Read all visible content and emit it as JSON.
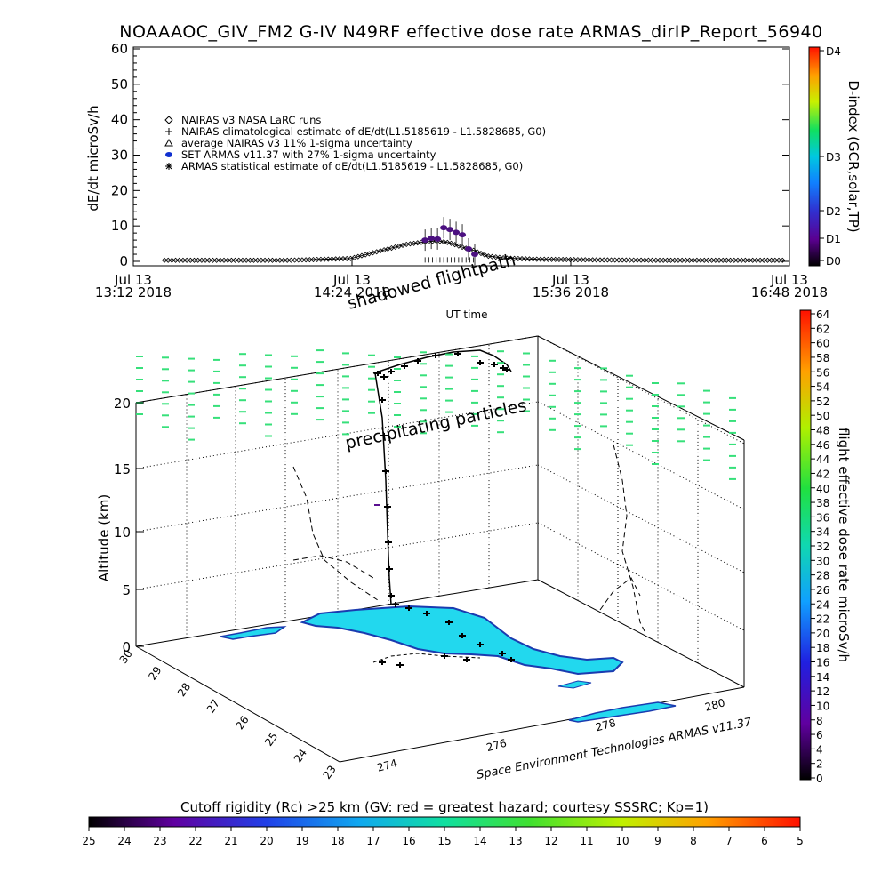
{
  "title": "NOAAAOC_GIV_FM2 G-IV    N49RF   effective dose rate ARMAS_dirIP_Report_56940",
  "chart_data": [
    {
      "type": "scatter",
      "ylabel": "dE/dt microSv/h",
      "xlabel": "UT time",
      "ylim": [
        0,
        60
      ],
      "yticks": [
        "0",
        "10",
        "20",
        "30",
        "40",
        "50",
        "60"
      ],
      "xticks": [
        {
          "date": "Jul 13",
          "time": "13:12 2018"
        },
        {
          "date": "Jul 13",
          "time": "14:24 2018"
        },
        {
          "date": "Jul 13",
          "time": "15:36 2018"
        },
        {
          "date": "Jul 13",
          "time": "16:48 2018"
        }
      ],
      "legend": [
        {
          "symbol": "diamond",
          "label": "NAIRAS v3 NASA LaRC runs"
        },
        {
          "symbol": "plus",
          "label": "NAIRAS climatological estimate of dE/dt(L1.5185619 - L1.5828685, G0)"
        },
        {
          "symbol": "triangle",
          "label": "average NAIRAS v3 11% 1-sigma uncertainty"
        },
        {
          "symbol": "dot",
          "label": "SET ARMAS v11.37 with 27% 1-sigma uncertainty"
        },
        {
          "symbol": "asterisk",
          "label": "ARMAS statistical estimate of dE/dt(L1.5185619 - L1.5828685, G0)"
        }
      ],
      "series": [
        {
          "name": "NAIRAS v3 NASA LaRC runs",
          "x_fraction": [
            0.0,
            0.2,
            0.3,
            0.36,
            0.39,
            0.42,
            0.44,
            0.46,
            0.48,
            0.5,
            0.52,
            0.55,
            0.6,
            0.7,
            0.8,
            0.9,
            1.0
          ],
          "values": [
            0.3,
            0.3,
            0.8,
            3.5,
            4.8,
            5.5,
            5.8,
            5.2,
            4.0,
            3.0,
            1.5,
            0.9,
            0.6,
            0.4,
            0.3,
            0.3,
            0.3
          ]
        },
        {
          "name": "SET ARMAS v11.37 with 27% 1-sigma uncertainty",
          "x_fraction": [
            0.42,
            0.43,
            0.44,
            0.45,
            0.46,
            0.47,
            0.48,
            0.49,
            0.5
          ],
          "values": [
            6.0,
            6.5,
            6.3,
            9.5,
            9.0,
            8.2,
            7.5,
            3.5,
            2.0
          ]
        }
      ],
      "colorbar": {
        "label": "D-index (GCR,solar,TP)",
        "ticks": [
          "D0",
          "D1",
          "D2",
          "D3",
          "D4"
        ]
      }
    },
    {
      "type": "scatter3d",
      "zlabel": "Altitude (km)",
      "zticks": [
        "0",
        "5",
        "10",
        "15",
        "20"
      ],
      "lat_ticks": [
        "30",
        "29",
        "28",
        "27",
        "26",
        "25",
        "24",
        "23"
      ],
      "lon_ticks": [
        "274",
        "276",
        "278",
        "280"
      ],
      "annotations": [
        "shadowed flightpath",
        "precipitating particles"
      ],
      "credit": "Space Environment Technologies ARMAS v11.37",
      "colorbar": {
        "label": "flight effective dose rate microSv/h",
        "ticks": [
          "0",
          "2",
          "4",
          "6",
          "8",
          "10",
          "12",
          "14",
          "16",
          "18",
          "20",
          "22",
          "24",
          "26",
          "28",
          "30",
          "32",
          "34",
          "36",
          "38",
          "40",
          "42",
          "44",
          "46",
          "48",
          "50",
          "52",
          "54",
          "56",
          "58",
          "60",
          "62",
          "64"
        ]
      }
    },
    {
      "type": "colorbar",
      "title": "Cutoff rigidity (Rc) >25 km (GV: red = greatest hazard; courtesy SSSRC; Kp=1)",
      "ticks": [
        "25",
        "24",
        "23",
        "22",
        "21",
        "20",
        "19",
        "18",
        "17",
        "16",
        "15",
        "14",
        "13",
        "12",
        "11",
        "10",
        "9",
        "8",
        "7",
        "6",
        "5"
      ]
    }
  ],
  "colors": {
    "particles": "#36e07a",
    "land": "#22d8ee",
    "coast": "#1a3bb0",
    "track": "#000000"
  }
}
